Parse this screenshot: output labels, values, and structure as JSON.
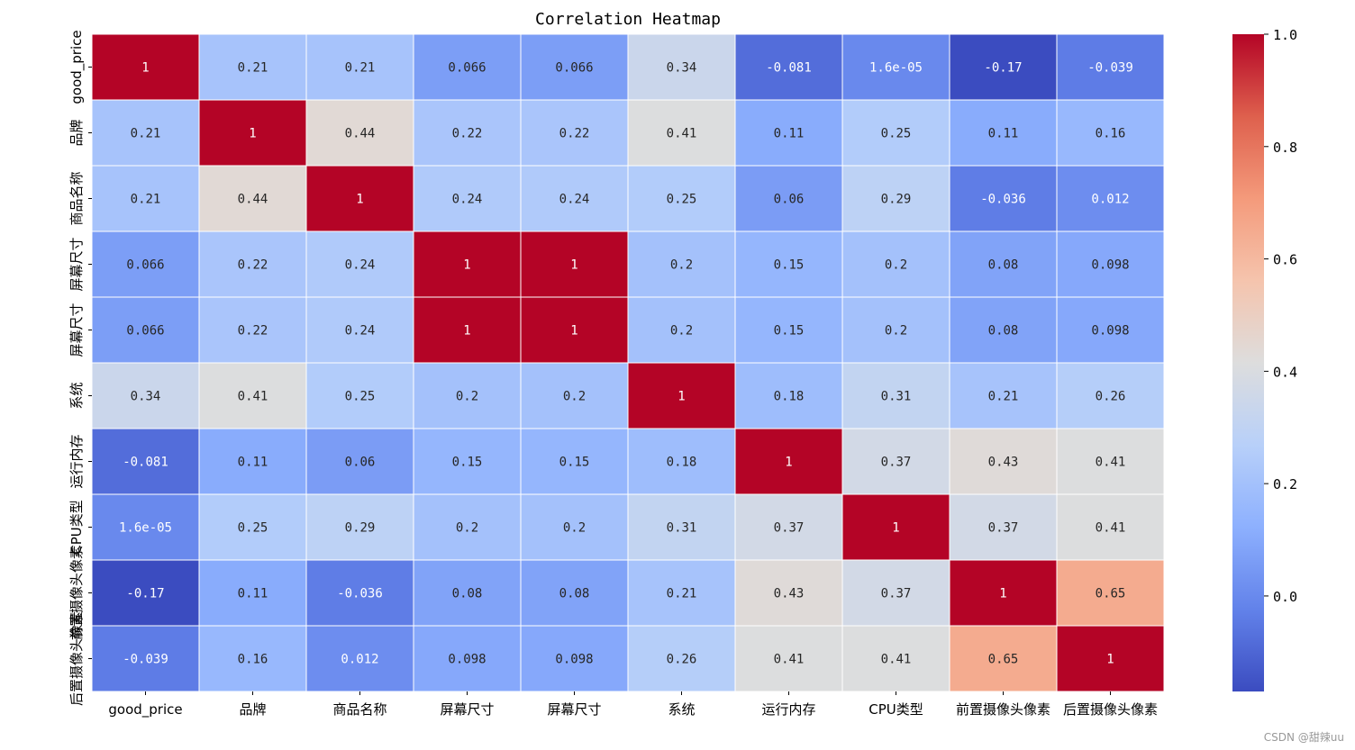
{
  "chart_data": {
    "type": "heatmap",
    "title": "Correlation Heatmap",
    "x_labels": [
      "good_price",
      "品牌",
      "商品名称",
      "屏幕尺寸",
      "屏幕尺寸",
      "系统",
      "运行内存",
      "CPU类型",
      "前置摄像头像素",
      "后置摄像头像素"
    ],
    "y_labels": [
      "good_price",
      "品牌",
      "商品名称",
      "屏幕尺寸",
      "屏幕尺寸",
      "系统",
      "运行内存",
      "CPU类型",
      "前置摄像头像素",
      "后置摄像头像素"
    ],
    "values": [
      [
        1,
        0.21,
        0.21,
        0.066,
        0.066,
        0.34,
        -0.081,
        1.6e-05,
        -0.17,
        -0.039
      ],
      [
        0.21,
        1,
        0.44,
        0.22,
        0.22,
        0.41,
        0.11,
        0.25,
        0.11,
        0.16
      ],
      [
        0.21,
        0.44,
        1,
        0.24,
        0.24,
        0.25,
        0.06,
        0.29,
        -0.036,
        0.012
      ],
      [
        0.066,
        0.22,
        0.24,
        1,
        1,
        0.2,
        0.15,
        0.2,
        0.08,
        0.098
      ],
      [
        0.066,
        0.22,
        0.24,
        1,
        1,
        0.2,
        0.15,
        0.2,
        0.08,
        0.098
      ],
      [
        0.34,
        0.41,
        0.25,
        0.2,
        0.2,
        1,
        0.18,
        0.31,
        0.21,
        0.26
      ],
      [
        -0.081,
        0.11,
        0.06,
        0.15,
        0.15,
        0.18,
        1,
        0.37,
        0.43,
        0.41
      ],
      [
        1.6e-05,
        0.25,
        0.29,
        0.2,
        0.2,
        0.31,
        0.37,
        1,
        0.37,
        0.41
      ],
      [
        -0.17,
        0.11,
        -0.036,
        0.08,
        0.08,
        0.21,
        0.43,
        0.37,
        1,
        0.65
      ],
      [
        -0.039,
        0.16,
        0.012,
        0.098,
        0.098,
        0.26,
        0.41,
        0.41,
        0.65,
        1
      ]
    ],
    "cell_labels": [
      [
        "1",
        "0.21",
        "0.21",
        "0.066",
        "0.066",
        "0.34",
        "-0.081",
        "1.6e-05",
        "-0.17",
        "-0.039"
      ],
      [
        "0.21",
        "1",
        "0.44",
        "0.22",
        "0.22",
        "0.41",
        "0.11",
        "0.25",
        "0.11",
        "0.16"
      ],
      [
        "0.21",
        "0.44",
        "1",
        "0.24",
        "0.24",
        "0.25",
        "0.06",
        "0.29",
        "-0.036",
        "0.012"
      ],
      [
        "0.066",
        "0.22",
        "0.24",
        "1",
        "1",
        "0.2",
        "0.15",
        "0.2",
        "0.08",
        "0.098"
      ],
      [
        "0.066",
        "0.22",
        "0.24",
        "1",
        "1",
        "0.2",
        "0.15",
        "0.2",
        "0.08",
        "0.098"
      ],
      [
        "0.34",
        "0.41",
        "0.25",
        "0.2",
        "0.2",
        "1",
        "0.18",
        "0.31",
        "0.21",
        "0.26"
      ],
      [
        "-0.081",
        "0.11",
        "0.06",
        "0.15",
        "0.15",
        "0.18",
        "1",
        "0.37",
        "0.43",
        "0.41"
      ],
      [
        "1.6e-05",
        "0.25",
        "0.29",
        "0.2",
        "0.2",
        "0.31",
        "0.37",
        "1",
        "0.37",
        "0.41"
      ],
      [
        "-0.17",
        "0.11",
        "-0.036",
        "0.08",
        "0.08",
        "0.21",
        "0.43",
        "0.37",
        "1",
        "0.65"
      ],
      [
        "-0.039",
        "0.16",
        "0.012",
        "0.098",
        "0.098",
        "0.26",
        "0.41",
        "0.41",
        "0.65",
        "1"
      ]
    ],
    "colormap": "coolwarm",
    "vmin": -0.17,
    "vmax": 1.0,
    "colorbar_ticks": [
      0.0,
      0.2,
      0.4,
      0.6,
      0.8,
      1.0
    ],
    "colorbar_tick_labels": [
      "0.0",
      "0.2",
      "0.4",
      "0.6",
      "0.8",
      "1.0"
    ],
    "annotated": true,
    "grid_line_color": "#ffffff"
  },
  "watermark": "CSDN @甜辣uu"
}
